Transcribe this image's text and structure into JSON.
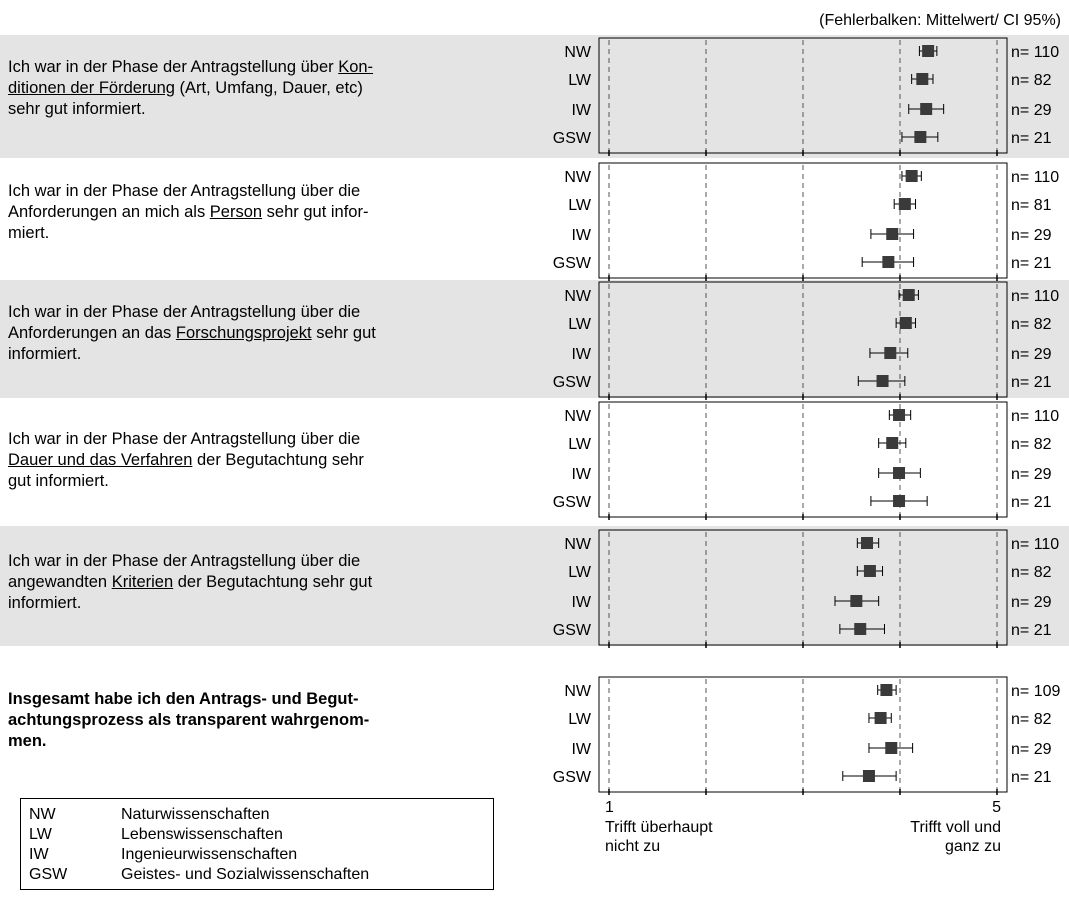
{
  "caption": "(Fehlerbalken: Mittelwert/ CI 95%)",
  "axis": {
    "min": 1,
    "max": 5,
    "min_label": "1",
    "max_label": "5",
    "min_text": [
      "Trifft überhaupt",
      "nicht zu"
    ],
    "max_text": [
      "Trifft voll und",
      "ganz zu"
    ]
  },
  "legend": [
    {
      "abbr": "NW",
      "name": "Naturwissenschaften"
    },
    {
      "abbr": "LW",
      "name": "Lebenswissenschaften"
    },
    {
      "abbr": "IW",
      "name": "Ingenieurwissenschaften"
    },
    {
      "abbr": "GSW",
      "name": "Geistes- und Sozialwissenschaften"
    }
  ],
  "chart_data": {
    "type": "scatter",
    "title": "",
    "xlim": [
      1,
      5
    ],
    "error_bars": "Mittelwert/ CI 95%",
    "groups": [
      "NW",
      "LW",
      "IW",
      "GSW"
    ],
    "panels": [
      {
        "question": [
          {
            "t": "Ich war in der Phase der Antragstellung über "
          },
          {
            "t": "Kon-",
            "u": true
          },
          {
            "t": "\n"
          },
          {
            "t": "ditionen der Förderung",
            "u": true
          },
          {
            "t": " (Art, Umfang, Dauer, etc)\nsehr gut informiert."
          }
        ],
        "bold": false,
        "shaded": true,
        "points": [
          {
            "group": "NW",
            "mean": 4.29,
            "lo": 4.2,
            "hi": 4.38,
            "n": "n= 110"
          },
          {
            "group": "LW",
            "mean": 4.23,
            "lo": 4.12,
            "hi": 4.34,
            "n": "n= 82"
          },
          {
            "group": "IW",
            "mean": 4.27,
            "lo": 4.09,
            "hi": 4.45,
            "n": "n= 29"
          },
          {
            "group": "GSW",
            "mean": 4.21,
            "lo": 4.02,
            "hi": 4.39,
            "n": "n= 21"
          }
        ]
      },
      {
        "question": [
          {
            "t": "Ich war in der Phase der Antragstellung über die\nAnforderungen an mich als "
          },
          {
            "t": "Person",
            "u": true
          },
          {
            "t": " sehr gut infor-\nmiert."
          }
        ],
        "bold": false,
        "shaded": false,
        "points": [
          {
            "group": "NW",
            "mean": 4.12,
            "lo": 4.02,
            "hi": 4.22,
            "n": "n= 110"
          },
          {
            "group": "LW",
            "mean": 4.05,
            "lo": 3.94,
            "hi": 4.16,
            "n": "n= 81"
          },
          {
            "group": "IW",
            "mean": 3.92,
            "lo": 3.7,
            "hi": 4.14,
            "n": "n= 29"
          },
          {
            "group": "GSW",
            "mean": 3.88,
            "lo": 3.61,
            "hi": 4.14,
            "n": "n= 21"
          }
        ]
      },
      {
        "question": [
          {
            "t": "Ich war in der Phase der Antragstellung über die\nAnforderungen an das "
          },
          {
            "t": "Forschungsprojekt",
            "u": true
          },
          {
            "t": " sehr gut\ninformiert."
          }
        ],
        "bold": false,
        "shaded": true,
        "points": [
          {
            "group": "NW",
            "mean": 4.09,
            "lo": 3.99,
            "hi": 4.19,
            "n": "n= 110"
          },
          {
            "group": "LW",
            "mean": 4.06,
            "lo": 3.96,
            "hi": 4.16,
            "n": "n= 82"
          },
          {
            "group": "IW",
            "mean": 3.9,
            "lo": 3.69,
            "hi": 4.08,
            "n": "n= 29"
          },
          {
            "group": "GSW",
            "mean": 3.82,
            "lo": 3.57,
            "hi": 4.05,
            "n": "n= 21"
          }
        ]
      },
      {
        "question": [
          {
            "t": "Ich war in der Phase der Antragstellung über die\n"
          },
          {
            "t": "Dauer und das Verfahren",
            "u": true
          },
          {
            "t": " der Begutachtung sehr\ngut informiert."
          }
        ],
        "bold": false,
        "shaded": false,
        "points": [
          {
            "group": "NW",
            "mean": 3.99,
            "lo": 3.89,
            "hi": 4.11,
            "n": "n= 110"
          },
          {
            "group": "LW",
            "mean": 3.92,
            "lo": 3.78,
            "hi": 4.06,
            "n": "n= 82"
          },
          {
            "group": "IW",
            "mean": 3.99,
            "lo": 3.78,
            "hi": 4.21,
            "n": "n= 29"
          },
          {
            "group": "GSW",
            "mean": 3.99,
            "lo": 3.7,
            "hi": 4.28,
            "n": "n= 21"
          }
        ]
      },
      {
        "question": [
          {
            "t": "Ich war in der Phase der Antragstellung über die\nangewandten "
          },
          {
            "t": "Kriterien",
            "u": true
          },
          {
            "t": " der Begutachtung sehr gut\ninformiert."
          }
        ],
        "bold": false,
        "shaded": true,
        "points": [
          {
            "group": "NW",
            "mean": 3.66,
            "lo": 3.56,
            "hi": 3.78,
            "n": "n= 110"
          },
          {
            "group": "LW",
            "mean": 3.69,
            "lo": 3.56,
            "hi": 3.82,
            "n": "n= 82"
          },
          {
            "group": "IW",
            "mean": 3.55,
            "lo": 3.33,
            "hi": 3.78,
            "n": "n= 29"
          },
          {
            "group": "GSW",
            "mean": 3.59,
            "lo": 3.38,
            "hi": 3.84,
            "n": "n= 21"
          }
        ]
      },
      {
        "question": [
          {
            "t": "Insgesamt habe ich den Antrags- und Begut-\nachtungsprozess als transparent wahrgenom-\nmen."
          }
        ],
        "bold": true,
        "shaded": false,
        "points": [
          {
            "group": "NW",
            "mean": 3.86,
            "lo": 3.77,
            "hi": 3.96,
            "n": "n= 109"
          },
          {
            "group": "LW",
            "mean": 3.8,
            "lo": 3.68,
            "hi": 3.91,
            "n": "n= 82"
          },
          {
            "group": "IW",
            "mean": 3.91,
            "lo": 3.68,
            "hi": 4.13,
            "n": "n= 29"
          },
          {
            "group": "GSW",
            "mean": 3.68,
            "lo": 3.41,
            "hi": 3.96,
            "n": "n= 21"
          }
        ]
      }
    ]
  }
}
